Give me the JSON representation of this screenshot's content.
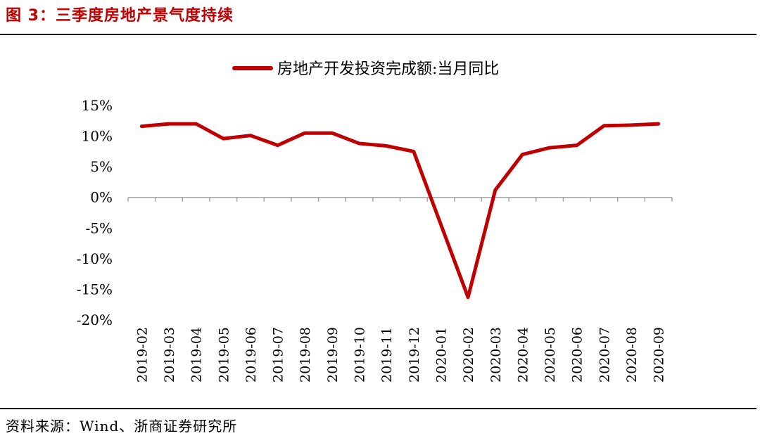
{
  "figure_title": "图 3：三季度房地产景气度持续",
  "source_note": "资料来源：Wind、浙商证券研究所",
  "colors": {
    "title": "#c00000",
    "series": "#c00000",
    "axis": "#a6a6a6"
  },
  "chart_data": {
    "type": "line",
    "title": "",
    "xlabel": "",
    "ylabel": "",
    "legend_position": "top-center",
    "grid": false,
    "ylim": [
      -20,
      15
    ],
    "yticks": [
      15,
      10,
      5,
      0,
      -5,
      -10,
      -15,
      -20
    ],
    "ytick_labels": [
      "15%",
      "10%",
      "5%",
      "0%",
      "-5%",
      "-10%",
      "-15%",
      "-20%"
    ],
    "categories": [
      "2019-02",
      "2019-03",
      "2019-04",
      "2019-05",
      "2019-06",
      "2019-07",
      "2019-08",
      "2019-09",
      "2019-10",
      "2019-11",
      "2019-12",
      "2020-01",
      "2020-02",
      "2020-03",
      "2020-04",
      "2020-05",
      "2020-06",
      "2020-07",
      "2020-08",
      "2020-09"
    ],
    "series": [
      {
        "name": "房地产开发投资完成额:当月同比",
        "color": "#c00000",
        "values": [
          11.6,
          12.0,
          12.0,
          9.6,
          10.1,
          8.5,
          10.5,
          10.5,
          8.8,
          8.4,
          7.5,
          null,
          -16.3,
          1.2,
          7.0,
          8.1,
          8.5,
          11.7,
          11.8,
          12.0
        ]
      }
    ]
  }
}
